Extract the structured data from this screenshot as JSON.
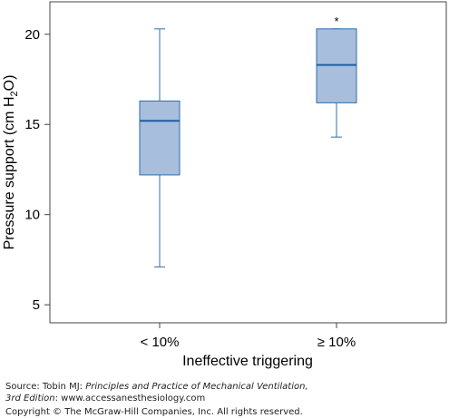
{
  "chart_data": {
    "type": "boxplot",
    "title": "",
    "xlabel": "Ineffective triggering",
    "ylabel_main": "Pressure support (cm H",
    "ylabel_sub": "2",
    "ylabel_end": "O)",
    "ylim": [
      4.0,
      21.8
    ],
    "yticks": [
      5,
      10,
      15,
      20
    ],
    "grid": false,
    "categories": [
      "< 10%",
      "≥ 10%"
    ],
    "boxes": [
      {
        "category": "< 10%",
        "whisker_low": 7.1,
        "q1": 12.2,
        "median": 15.2,
        "q3": 16.3,
        "whisker_high": 20.3,
        "outlier_marker": ""
      },
      {
        "category": "≥ 10%",
        "whisker_low": 14.3,
        "q1": 16.2,
        "median": 18.3,
        "q3": 20.3,
        "whisker_high": 20.3,
        "outlier_marker": "*"
      }
    ],
    "colors": {
      "box_fill": "#a7bedd",
      "box_stroke": "#2f6ea8",
      "median": "#1f5fa0",
      "axis": "#444444"
    }
  },
  "footer": {
    "source_prefix": "Source: Tobin MJ: ",
    "source_title": "Principles and Practice of Mechanical Ventilation,",
    "edition": "3rd Edition",
    "edition_rest": ": www.accessanesthesiology.com",
    "copyright": "Copyright © The McGraw-Hill Companies, Inc. All rights reserved."
  }
}
